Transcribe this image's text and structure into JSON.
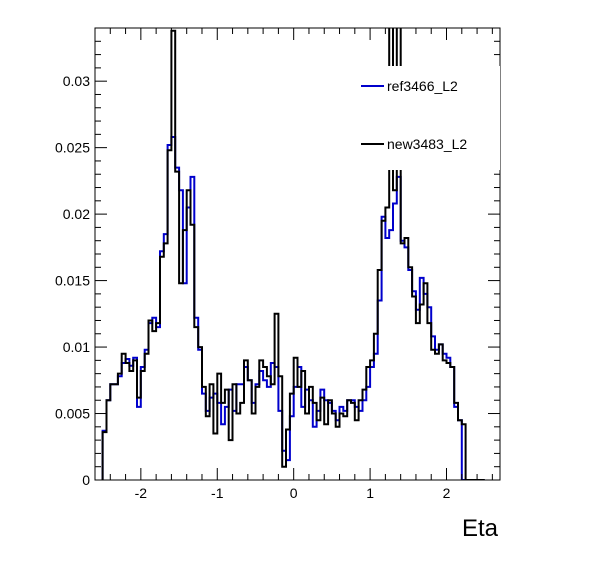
{
  "chart_data": {
    "type": "line",
    "title": "",
    "xlabel": "Eta",
    "ylabel": "",
    "xlim": [
      -2.6,
      2.7
    ],
    "ylim": [
      0,
      0.034
    ],
    "x_ticks": [
      -2,
      -1,
      0,
      1,
      2
    ],
    "y_ticks": [
      0,
      0.005,
      0.01,
      0.015,
      0.02,
      0.025,
      0.03
    ],
    "x_tick_labels": [
      "-2",
      "-1",
      "0",
      "1",
      "2"
    ],
    "y_tick_labels": [
      "0",
      "0.005",
      "0.01",
      "0.015",
      "0.02",
      "0.025",
      "0.03"
    ],
    "legend_position": "top-right",
    "grid": false,
    "x_bins": [
      -2.5,
      -2.45,
      -2.4,
      -2.35,
      -2.3,
      -2.25,
      -2.2,
      -2.15,
      -2.1,
      -2.05,
      -2.0,
      -1.95,
      -1.9,
      -1.85,
      -1.8,
      -1.75,
      -1.7,
      -1.65,
      -1.6,
      -1.55,
      -1.5,
      -1.45,
      -1.4,
      -1.35,
      -1.3,
      -1.25,
      -1.2,
      -1.15,
      -1.1,
      -1.05,
      -1.0,
      -0.95,
      -0.9,
      -0.85,
      -0.8,
      -0.75,
      -0.7,
      -0.65,
      -0.6,
      -0.55,
      -0.5,
      -0.45,
      -0.4,
      -0.35,
      -0.3,
      -0.25,
      -0.2,
      -0.15,
      -0.1,
      -0.05,
      0.0,
      0.05,
      0.1,
      0.15,
      0.2,
      0.25,
      0.3,
      0.35,
      0.4,
      0.45,
      0.5,
      0.55,
      0.6,
      0.65,
      0.7,
      0.75,
      0.8,
      0.85,
      0.9,
      0.95,
      1.0,
      1.05,
      1.1,
      1.15,
      1.2,
      1.25,
      1.3,
      1.35,
      1.4,
      1.45,
      1.5,
      1.55,
      1.6,
      1.65,
      1.7,
      1.75,
      1.8,
      1.85,
      1.9,
      1.95,
      2.0,
      2.05,
      2.1,
      2.15,
      2.2,
      2.25,
      2.3,
      2.35,
      2.4,
      2.45,
      2.5
    ],
    "series": [
      {
        "name": "ref3466_L2",
        "color": "#0000cc",
        "values": [
          0.0037,
          0.006,
          0.0072,
          0.0072,
          0.0078,
          0.0088,
          0.0091,
          0.0086,
          0.0092,
          0.0055,
          0.0085,
          0.0098,
          0.0118,
          0.0122,
          0.0115,
          0.0172,
          0.0185,
          0.0252,
          0.0258,
          0.0235,
          0.0218,
          0.0148,
          0.0205,
          0.0228,
          0.0122,
          0.0098,
          0.0065,
          0.0052,
          0.0062,
          0.0065,
          0.0058,
          0.0042,
          0.0055,
          0.0068,
          0.0052,
          0.0072,
          0.0072,
          0.0085,
          0.0075,
          0.0058,
          0.0072,
          0.0082,
          0.0075,
          0.007,
          0.0088,
          0.0085,
          0.0052,
          0.0022,
          0.0015,
          0.0048,
          0.007,
          0.0085,
          0.0055,
          0.0068,
          0.006,
          0.004,
          0.0052,
          0.0068,
          0.006,
          0.0058,
          0.0052,
          0.0045,
          0.0055,
          0.0052,
          0.006,
          0.006,
          0.0055,
          0.0052,
          0.006,
          0.007,
          0.0085,
          0.0095,
          0.0135,
          0.0198,
          0.0182,
          0.0188,
          0.0208,
          0.0228,
          0.018,
          0.0175,
          0.0158,
          0.0142,
          0.0128,
          0.0152,
          0.014,
          0.013,
          0.0108,
          0.0098,
          0.0102,
          0.0095,
          0.0092,
          0.0085,
          0.0055,
          0.0045,
          0.0,
          0.0,
          0.0,
          0.0,
          0.0,
          0.0
        ],
        "values_note": ""
      },
      {
        "name": "new3483_L2",
        "color": "#000000",
        "values": [
          0.0036,
          0.006,
          0.0072,
          0.0072,
          0.008,
          0.0095,
          0.0088,
          0.0082,
          0.009,
          0.0062,
          0.0082,
          0.0095,
          0.012,
          0.0112,
          0.0118,
          0.0168,
          0.0178,
          0.0248,
          0.0338,
          0.0232,
          0.0148,
          0.0188,
          0.0218,
          0.0192,
          0.0115,
          0.01,
          0.007,
          0.0048,
          0.0072,
          0.0035,
          0.008,
          0.0058,
          0.0068,
          0.003,
          0.0072,
          0.005,
          0.0058,
          0.009,
          0.0075,
          0.005,
          0.007,
          0.009,
          0.0085,
          0.0078,
          0.0072,
          0.0125,
          0.0078,
          0.001,
          0.0038,
          0.0065,
          0.0092,
          0.007,
          0.0082,
          0.005,
          0.007,
          0.0058,
          0.0045,
          0.0062,
          0.0042,
          0.006,
          0.005,
          0.004,
          0.005,
          0.0048,
          0.006,
          0.0058,
          0.0045,
          0.006,
          0.0068,
          0.0085,
          0.009,
          0.011,
          0.0158,
          0.0195,
          0.0205,
          0.0348,
          0.0218,
          0.0352,
          0.0178,
          0.0182,
          0.016,
          0.0138,
          0.0118,
          0.0132,
          0.0148,
          0.0118,
          0.0098,
          0.0095,
          0.0102,
          0.009,
          0.0088,
          0.0085,
          0.0058,
          0.0045,
          0.0042,
          0.0,
          0.0,
          0.0,
          0.0,
          0.0,
          0.0
        ]
      }
    ]
  }
}
